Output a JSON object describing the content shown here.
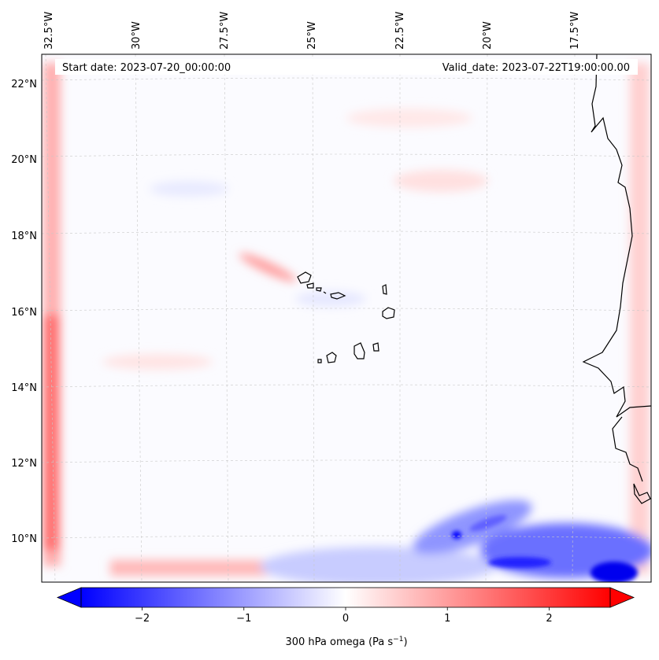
{
  "map": {
    "start_label": "Start date: 2023-07-20_00:00:00",
    "valid_label": "Valid_date: 2023-07-22T19:00:00.00",
    "lon_labels": [
      "32.5°W",
      "30°W",
      "27.5°W",
      "25°W",
      "22.5°W",
      "20°W",
      "17.5°W"
    ],
    "lat_labels": [
      "22°N",
      "20°N",
      "18°N",
      "16°N",
      "14°N",
      "12°N",
      "10°N"
    ],
    "colors": {
      "neg": "#0000ff",
      "zero": "#ffffff",
      "pos": "#ff0000",
      "coast": "#000000",
      "grid": "#c8c8c8"
    }
  },
  "colorbar": {
    "label": "300 hPa omega (Pa s",
    "label_exp": "−1",
    "label_close": ")",
    "ticks": [
      "−2",
      "−1",
      "0",
      "1",
      "2"
    ],
    "tick_values": [
      -2,
      -1,
      0,
      1,
      2
    ],
    "range": [
      -2.6,
      2.6
    ]
  }
}
